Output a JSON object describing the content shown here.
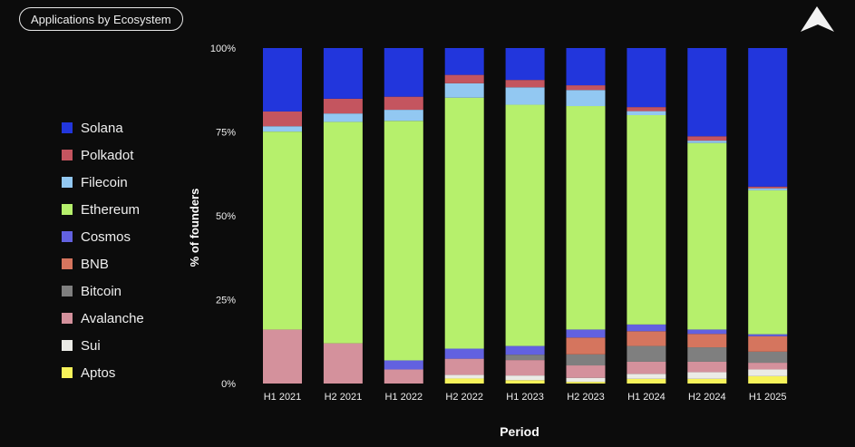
{
  "header": {
    "title": "Applications by Ecosystem"
  },
  "logo": {
    "icon": "triangle-logo-icon"
  },
  "chart_data": {
    "type": "bar",
    "stacked": true,
    "xlabel": "Period",
    "ylabel": "% of founders",
    "ylim": [
      0,
      100
    ],
    "yticks": [
      "0%",
      "25%",
      "50%",
      "75%",
      "100%"
    ],
    "legend_position": "left",
    "categories": [
      "H1 2021",
      "H2 2021",
      "H1 2022",
      "H2 2022",
      "H1 2023",
      "H2 2023",
      "H1 2024",
      "H2 2024",
      "H1 2025"
    ],
    "series": [
      {
        "name": "Aptos",
        "color": "#f7f35a",
        "values": [
          0,
          0,
          0,
          1.5,
          1.0,
          0.5,
          1.4,
          1.4,
          2.2
        ]
      },
      {
        "name": "Sui",
        "color": "#ebebe6",
        "values": [
          0,
          0,
          0,
          1.1,
          1.4,
          1.2,
          1.5,
          2.0,
          2.0
        ]
      },
      {
        "name": "Avalanche",
        "color": "#d4919c",
        "values": [
          16.1,
          12.0,
          4.2,
          4.8,
          4.6,
          3.7,
          3.6,
          3.1,
          2.0
        ]
      },
      {
        "name": "Bitcoin",
        "color": "#7f7f7f",
        "values": [
          0,
          0,
          0,
          0,
          1.6,
          3.3,
          4.7,
          4.3,
          3.3
        ]
      },
      {
        "name": "BNB",
        "color": "#d5755e",
        "values": [
          0,
          0,
          0,
          0,
          0,
          5.0,
          4.4,
          4.0,
          4.6
        ]
      },
      {
        "name": "Cosmos",
        "color": "#6261e0",
        "values": [
          0,
          0,
          2.7,
          3.0,
          2.6,
          2.4,
          2.0,
          1.3,
          0.6
        ]
      },
      {
        "name": "Ethereum",
        "color": "#b6f06c",
        "values": [
          59.0,
          66.0,
          71.4,
          74.8,
          71.9,
          66.6,
          62.4,
          55.6,
          42.9
        ]
      },
      {
        "name": "Filecoin",
        "color": "#92c8f2",
        "values": [
          1.6,
          2.5,
          3.3,
          4.3,
          5.2,
          4.8,
          1.2,
          0.7,
          0.6
        ]
      },
      {
        "name": "Polkadot",
        "color": "#c4555f",
        "values": [
          4.4,
          4.4,
          3.9,
          2.5,
          2.2,
          1.4,
          1.2,
          1.3,
          0.5
        ]
      },
      {
        "name": "Solana",
        "color": "#2236dc",
        "values": [
          18.9,
          15.1,
          14.5,
          8.0,
          9.5,
          11.1,
          17.6,
          26.3,
          41.3
        ]
      }
    ],
    "legend_order": [
      "Solana",
      "Polkadot",
      "Filecoin",
      "Ethereum",
      "Cosmos",
      "BNB",
      "Bitcoin",
      "Avalanche",
      "Sui",
      "Aptos"
    ]
  }
}
